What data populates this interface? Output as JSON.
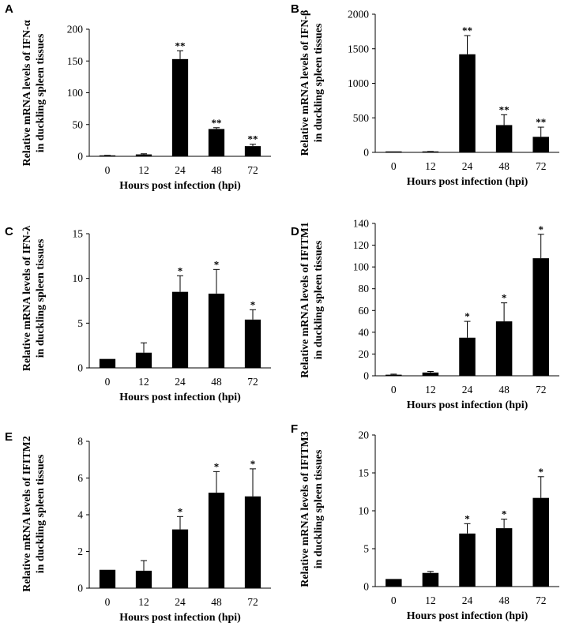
{
  "chart_data": [
    {
      "panel": "A",
      "type": "bar",
      "categories": [
        "0",
        "12",
        "24",
        "48",
        "72"
      ],
      "values": [
        1,
        3,
        153,
        43,
        16
      ],
      "errors": [
        0.5,
        1,
        13,
        2,
        3
      ],
      "significance": [
        "",
        "",
        "**",
        "**",
        "**"
      ],
      "yticks": [
        "0",
        "50",
        "100",
        "150",
        "200"
      ],
      "ylim": [
        0,
        200
      ],
      "xlabel": "Hours post infection (hpi)",
      "ylabel": [
        "Relative mRNA levels of IFN-α",
        "in duckling spleen tissues"
      ]
    },
    {
      "panel": "B",
      "type": "bar",
      "categories": [
        "0",
        "12",
        "24",
        "48",
        "72"
      ],
      "values": [
        1,
        10,
        1420,
        395,
        225
      ],
      "errors": [
        1,
        3,
        270,
        150,
        140
      ],
      "significance": [
        "",
        "",
        "**",
        "**",
        "**"
      ],
      "yticks": [
        "0",
        "500",
        "1000",
        "1500",
        "2000"
      ],
      "ylim": [
        0,
        2000
      ],
      "xlabel": "Hours post infection (hpi)",
      "ylabel": [
        "Relative mRNA levels of IFN-β",
        "in duckling spleen tissues"
      ]
    },
    {
      "panel": "C",
      "type": "bar",
      "categories": [
        "0",
        "12",
        "24",
        "48",
        "72"
      ],
      "values": [
        1,
        1.7,
        8.5,
        8.3,
        5.4
      ],
      "errors": [
        0,
        1.1,
        1.8,
        2.7,
        1.1
      ],
      "significance": [
        "",
        "",
        "*",
        "*",
        "*"
      ],
      "yticks": [
        "0",
        "5",
        "10",
        "15"
      ],
      "ylim": [
        0,
        15
      ],
      "xlabel": "Hours post infection (hpi)",
      "ylabel": [
        "Relative mRNA levels of IFN-λ",
        "in duckling spleen tissues"
      ]
    },
    {
      "panel": "D",
      "type": "bar",
      "categories": [
        "0",
        "12",
        "24",
        "48",
        "72"
      ],
      "values": [
        1,
        3,
        35,
        50,
        108
      ],
      "errors": [
        0.5,
        1,
        15,
        17,
        22
      ],
      "significance": [
        "",
        "",
        "*",
        "*",
        "*"
      ],
      "yticks": [
        "0",
        "20",
        "40",
        "60",
        "80",
        "100",
        "120",
        "140"
      ],
      "ylim": [
        0,
        140
      ],
      "xlabel": "Hours post infection (hpi)",
      "ylabel": [
        "Relative mRNA levels of IFITM1",
        "in duckling spleen tissues"
      ]
    },
    {
      "panel": "E",
      "type": "bar",
      "categories": [
        "0",
        "12",
        "24",
        "48",
        "72"
      ],
      "values": [
        1,
        0.95,
        3.2,
        5.2,
        5.0
      ],
      "errors": [
        0,
        0.55,
        0.7,
        1.15,
        1.5
      ],
      "significance": [
        "",
        "",
        "*",
        "*",
        "*"
      ],
      "yticks": [
        "0",
        "2",
        "4",
        "6",
        "8"
      ],
      "ylim": [
        0,
        8
      ],
      "xlabel": "Hours post infection (hpi)",
      "ylabel": [
        "Relative mRNA levels of IFITM2",
        "in duckling spleen tissues"
      ]
    },
    {
      "panel": "F",
      "type": "bar",
      "categories": [
        "0",
        "12",
        "24",
        "48",
        "72"
      ],
      "values": [
        1,
        1.8,
        7.0,
        7.7,
        11.7
      ],
      "errors": [
        0,
        0.2,
        1.3,
        1.2,
        2.8
      ],
      "significance": [
        "",
        "",
        "*",
        "*",
        "*"
      ],
      "yticks": [
        "0",
        "5",
        "10",
        "15",
        "20"
      ],
      "ylim": [
        0,
        20
      ],
      "xlabel": "Hours post infection (hpi)",
      "ylabel": [
        "Relative mRNA levels of IFITM3",
        "in duckling spleen tissues"
      ]
    }
  ],
  "colors": {
    "bar": "#000000",
    "axis": "#000000",
    "background": "#ffffff"
  }
}
